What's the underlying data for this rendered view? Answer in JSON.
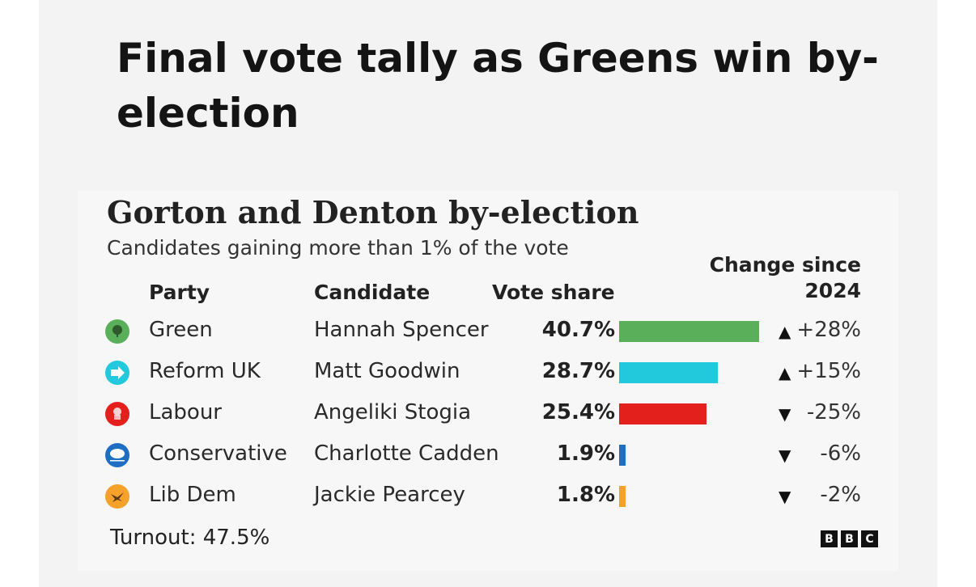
{
  "headline": "Final vote tally as Greens win by-election",
  "chart_data": {
    "type": "bar",
    "title": "Gorton and Denton by-election",
    "subtitle": "Candidates gaining more than 1% of the vote",
    "headers": {
      "party": "Party",
      "candidate": "Candidate",
      "vote_share": "Vote share",
      "change": "Change since 2024"
    },
    "rows": [
      {
        "party": "Green",
        "candidate": "Hannah Spencer",
        "value": 40.7,
        "label": "40.7%",
        "change": "+28%",
        "direction": "up",
        "color": "#5aaf5a",
        "icon": "green-party-logo-icon"
      },
      {
        "party": "Reform UK",
        "candidate": "Matt Goodwin",
        "value": 28.7,
        "label": "28.7%",
        "change": "+15%",
        "direction": "up",
        "color": "#22c8dc",
        "icon": "reform-uk-arrow-icon"
      },
      {
        "party": "Labour",
        "candidate": "Angeliki Stogia",
        "value": 25.4,
        "label": "25.4%",
        "change": "-25%",
        "direction": "down",
        "color": "#e4201c",
        "icon": "labour-rose-icon"
      },
      {
        "party": "Conservative",
        "candidate": "Charlotte Cadden",
        "value": 1.9,
        "label": "1.9%",
        "change": "-6%",
        "direction": "down",
        "color": "#1e6fc4",
        "icon": "conservative-tree-icon"
      },
      {
        "party": "Lib Dem",
        "candidate": "Jackie Pearcey",
        "value": 1.8,
        "label": "1.8%",
        "change": "-2%",
        "direction": "down",
        "color": "#f5a12a",
        "icon": "lib-dem-bird-icon"
      }
    ],
    "turnout": "Turnout: 47.5%",
    "source_logo": "BBC"
  }
}
